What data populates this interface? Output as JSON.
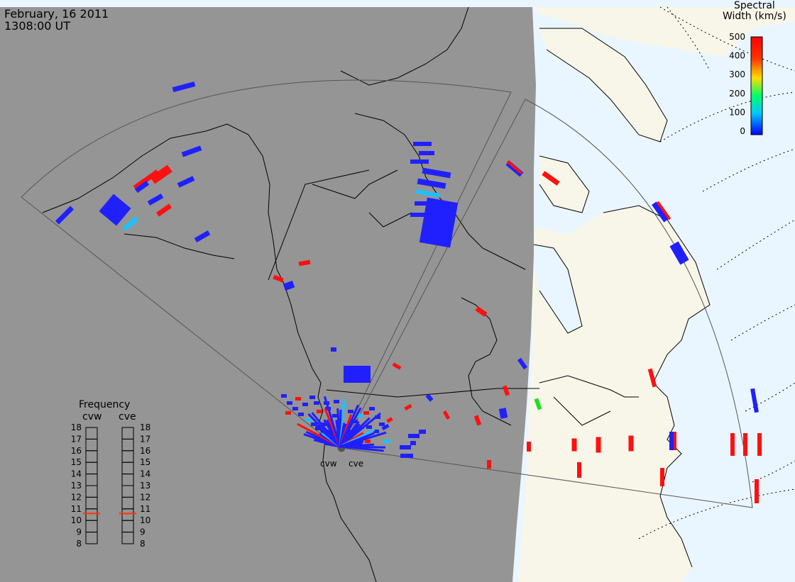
{
  "header": {
    "date": "February, 16 2011",
    "time": "1308:00 UT"
  },
  "colorbar": {
    "title_line1": "Spectral",
    "title_line2": "Width (km/s)",
    "ticks": [
      "500",
      "400",
      "300",
      "200",
      "100",
      "0"
    ],
    "colors": [
      "#0000ff",
      "#00c8ff",
      "#00ff66",
      "#ffdd00",
      "#ff3300",
      "#ff0000"
    ]
  },
  "frequency_panel": {
    "title": "Frequency",
    "radars": [
      "cvw",
      "cve"
    ],
    "ticks": [
      "18",
      "17",
      "16",
      "15",
      "14",
      "13",
      "12",
      "11",
      "10",
      "9",
      "8"
    ],
    "range_mhz": [
      8,
      18
    ],
    "values_mhz": [
      10.6,
      10.6
    ],
    "marker_color": "#ff3300"
  },
  "radar_labels": [
    "cvw",
    "cve"
  ],
  "map": {
    "night_color": "#959595",
    "day_land_color": "#f8f6e8",
    "day_ocean_color": "#eaf6ff",
    "coast_color": "#000000",
    "fov_color": "#555555"
  },
  "scatter": {
    "blue": "#2020ff",
    "red": "#ff1010",
    "cyan": "#20c0ff",
    "green": "#20e020"
  }
}
